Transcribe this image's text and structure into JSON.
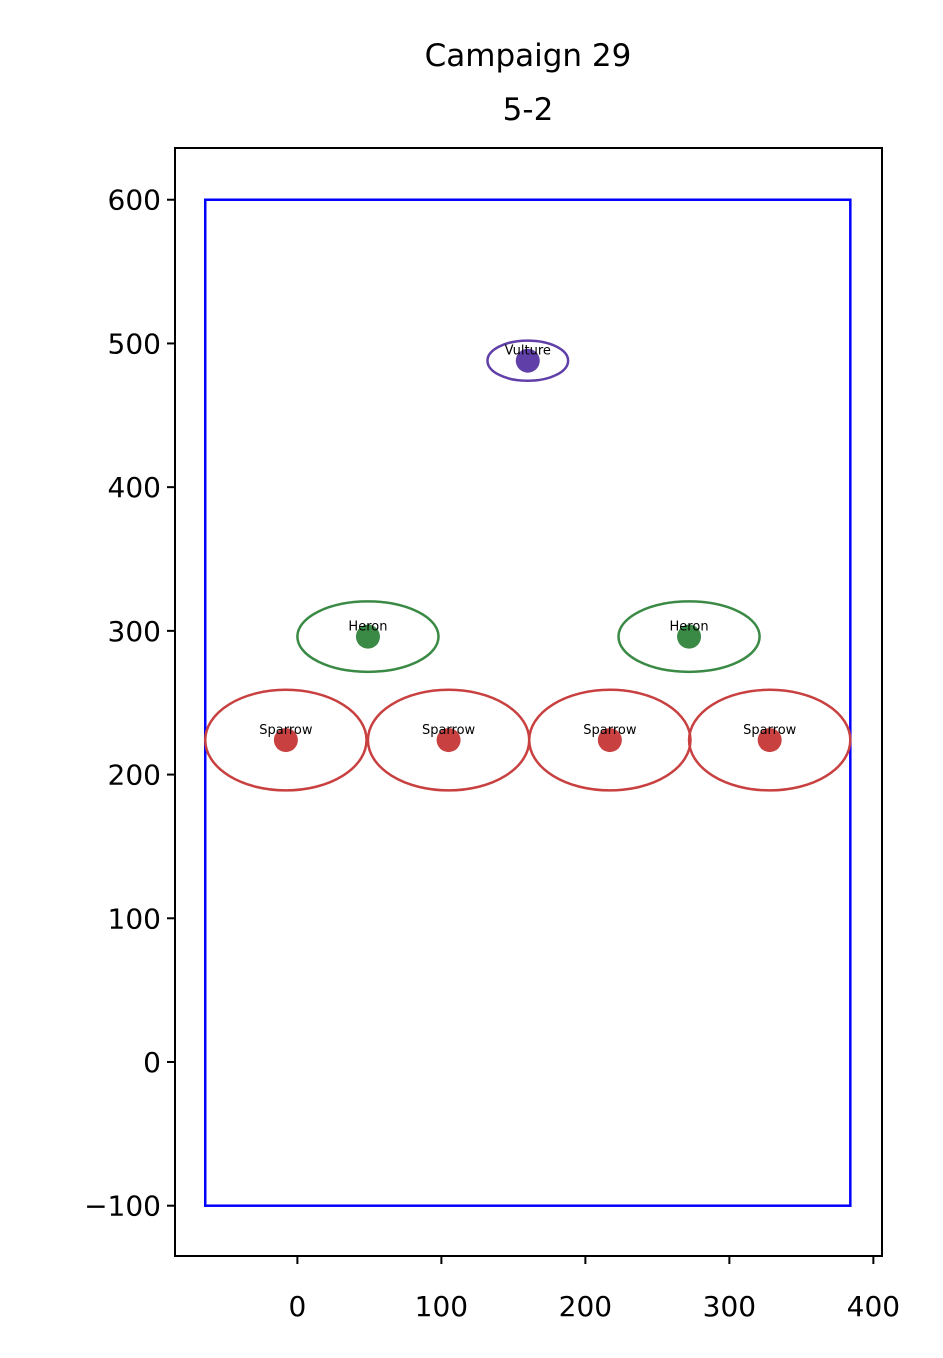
{
  "chart_data": {
    "type": "scatter",
    "title": "Campaign 29",
    "subtitle": "5-2",
    "xlim": [
      -85,
      406
    ],
    "ylim": [
      -135,
      636
    ],
    "xticks": [
      0,
      100,
      200,
      300,
      400
    ],
    "yticks": [
      {
        "value": -100,
        "label": "−100"
      },
      0,
      100,
      200,
      300,
      400,
      500,
      600
    ],
    "boundary": {
      "x": [
        -64,
        384
      ],
      "y": [
        -100,
        600
      ],
      "color": "#0000ff"
    },
    "points": [
      {
        "label": "Vulture",
        "x": 160,
        "y": 488,
        "width": 56,
        "height": 28,
        "color": "#6040a8"
      },
      {
        "label": "Heron",
        "x": 49,
        "y": 296,
        "width": 98,
        "height": 49,
        "color": "#3a8a45"
      },
      {
        "label": "Heron",
        "x": 272,
        "y": 296,
        "width": 98,
        "height": 49,
        "color": "#3a8a45"
      },
      {
        "label": "Sparrow",
        "x": -8,
        "y": 224,
        "width": 112,
        "height": 70,
        "color": "#c84040"
      },
      {
        "label": "Sparrow",
        "x": 105,
        "y": 224,
        "width": 112,
        "height": 70,
        "color": "#c84040"
      },
      {
        "label": "Sparrow",
        "x": 217,
        "y": 224,
        "width": 112,
        "height": 70,
        "color": "#c84040"
      },
      {
        "label": "Sparrow",
        "x": 328,
        "y": 224,
        "width": 112,
        "height": 70,
        "color": "#c84040"
      }
    ]
  }
}
